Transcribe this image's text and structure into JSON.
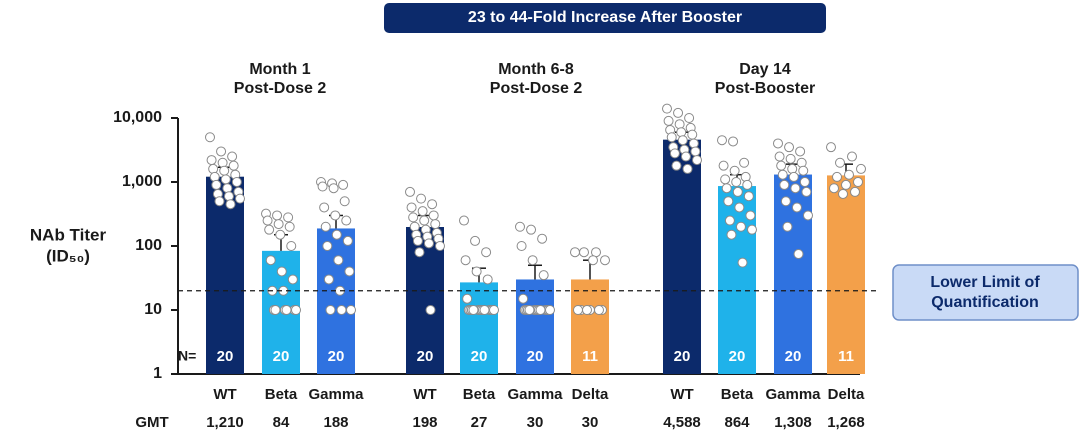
{
  "chart_data": {
    "type": "bar",
    "log_scale": true,
    "banner": "23 to 44-Fold Increase After Booster",
    "y_label": [
      "NAb Titer",
      "(ID₅₀)"
    ],
    "ylim": [
      1,
      10000
    ],
    "yticks": [
      1,
      10,
      100,
      {
        "value": 1000,
        "label": "1,000"
      },
      {
        "value": 10000,
        "label": "10,000"
      }
    ],
    "lloq": 20,
    "lloq_label": [
      "Lower Limit of",
      "Quantification"
    ],
    "n_label": "N=",
    "gmt_label": "GMT",
    "groups": [
      {
        "title": [
          "Month 1",
          "Post-Dose 2"
        ],
        "bars": [
          {
            "name": "WT",
            "color": "#0c2a6b",
            "value": 1210,
            "value_label": "1,210",
            "n": 20,
            "error_upper": 1700,
            "points": [
              5000,
              3000,
              2500,
              2200,
              2000,
              1800,
              1600,
              1500,
              1300,
              1200,
              1100,
              1000,
              900,
              800,
              700,
              650,
              600,
              550,
              500,
              450
            ]
          },
          {
            "name": "Beta",
            "color": "#1fb2ea",
            "value": 84,
            "value_label": "84",
            "n": 20,
            "error_upper": 150,
            "points": [
              320,
              300,
              280,
              250,
              220,
              200,
              180,
              150,
              100,
              60,
              40,
              30,
              20,
              20,
              10,
              10,
              10,
              10,
              10,
              10
            ]
          },
          {
            "name": "Gamma",
            "color": "#2f72e0",
            "value": 188,
            "value_label": "188",
            "n": 20,
            "error_upper": 300,
            "points": [
              1000,
              950,
              900,
              850,
              800,
              500,
              400,
              300,
              250,
              200,
              150,
              120,
              100,
              60,
              40,
              30,
              20,
              10,
              10,
              10
            ]
          }
        ]
      },
      {
        "title": [
          "Month 6-8",
          "Post-Dose 2"
        ],
        "bars": [
          {
            "name": "WT",
            "color": "#0c2a6b",
            "value": 198,
            "value_label": "198",
            "n": 20,
            "error_upper": 300,
            "points": [
              700,
              550,
              450,
              400,
              350,
              300,
              280,
              250,
              220,
              200,
              180,
              160,
              150,
              140,
              130,
              120,
              110,
              100,
              80,
              10
            ]
          },
          {
            "name": "Beta",
            "color": "#1fb2ea",
            "value": 27,
            "value_label": "27",
            "n": 20,
            "error_upper": 45,
            "points": [
              250,
              120,
              80,
              60,
              40,
              30,
              15,
              10,
              10,
              10,
              10,
              10,
              10,
              10,
              10,
              10,
              10,
              10,
              10,
              10
            ]
          },
          {
            "name": "Gamma",
            "color": "#2f72e0",
            "value": 30,
            "value_label": "30",
            "n": 20,
            "error_upper": 50,
            "points": [
              200,
              180,
              130,
              100,
              60,
              35,
              15,
              10,
              10,
              10,
              10,
              10,
              10,
              10,
              10,
              10,
              10,
              10,
              10,
              10
            ]
          },
          {
            "name": "Delta",
            "color": "#f3a04a",
            "value": 30,
            "value_label": "30",
            "n": 11,
            "error_upper": 60,
            "points": [
              80,
              80,
              80,
              60,
              60,
              10,
              10,
              10,
              10,
              10,
              10
            ]
          }
        ]
      },
      {
        "title": [
          "Day 14",
          "Post-Booster"
        ],
        "bars": [
          {
            "name": "WT",
            "color": "#0c2a6b",
            "value": 4588,
            "value_label": "4,588",
            "n": 20,
            "error_upper": 6000,
            "points": [
              14000,
              12000,
              10000,
              9000,
              8000,
              7000,
              6500,
              6000,
              5500,
              5000,
              4500,
              4000,
              3500,
              3200,
              3000,
              2800,
              2500,
              2200,
              1800,
              1600
            ]
          },
          {
            "name": "Beta",
            "color": "#1fb2ea",
            "value": 864,
            "value_label": "864",
            "n": 20,
            "error_upper": 1300,
            "points": [
              4500,
              4300,
              2000,
              1800,
              1500,
              1200,
              1100,
              1000,
              900,
              800,
              700,
              600,
              500,
              400,
              300,
              250,
              200,
              180,
              150,
              55
            ]
          },
          {
            "name": "Gamma",
            "color": "#2f72e0",
            "value": 1308,
            "value_label": "1,308",
            "n": 20,
            "error_upper": 1900,
            "points": [
              4000,
              3500,
              3000,
              2500,
              2300,
              2000,
              1800,
              1600,
              1500,
              1300,
              1200,
              1000,
              900,
              800,
              700,
              500,
              400,
              300,
              200,
              75
            ]
          },
          {
            "name": "Delta",
            "color": "#f3a04a",
            "value": 1268,
            "value_label": "1,268",
            "n": 11,
            "error_upper": 1900,
            "points": [
              3500,
              2500,
              2000,
              1600,
              1300,
              1200,
              1000,
              900,
              800,
              700,
              650
            ]
          }
        ]
      }
    ]
  }
}
